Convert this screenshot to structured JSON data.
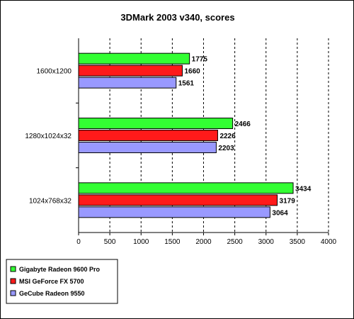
{
  "chart_data": {
    "type": "bar",
    "orientation": "horizontal",
    "title": "3DMark 2003 v340, scores",
    "categories": [
      "1600x1200",
      "1280x1024x32",
      "1024x768x32"
    ],
    "series": [
      {
        "name": "Gigabyte Radeon 9600 Pro",
        "color": "#33ff33",
        "values": [
          1775,
          2466,
          3434
        ]
      },
      {
        "name": "MSI GeForce FX 5700",
        "color": "#ff1a1a",
        "values": [
          1660,
          2226,
          3179
        ]
      },
      {
        "name": "GeCube Radeon 9550",
        "color": "#9999ff",
        "values": [
          1561,
          2203,
          3064
        ]
      }
    ],
    "xlim": [
      0,
      4000
    ],
    "xticks": [
      0,
      500,
      1000,
      1500,
      2000,
      2500,
      3000,
      3500,
      4000
    ],
    "grid": "vertical dashed",
    "legend_position": "bottom-left"
  }
}
